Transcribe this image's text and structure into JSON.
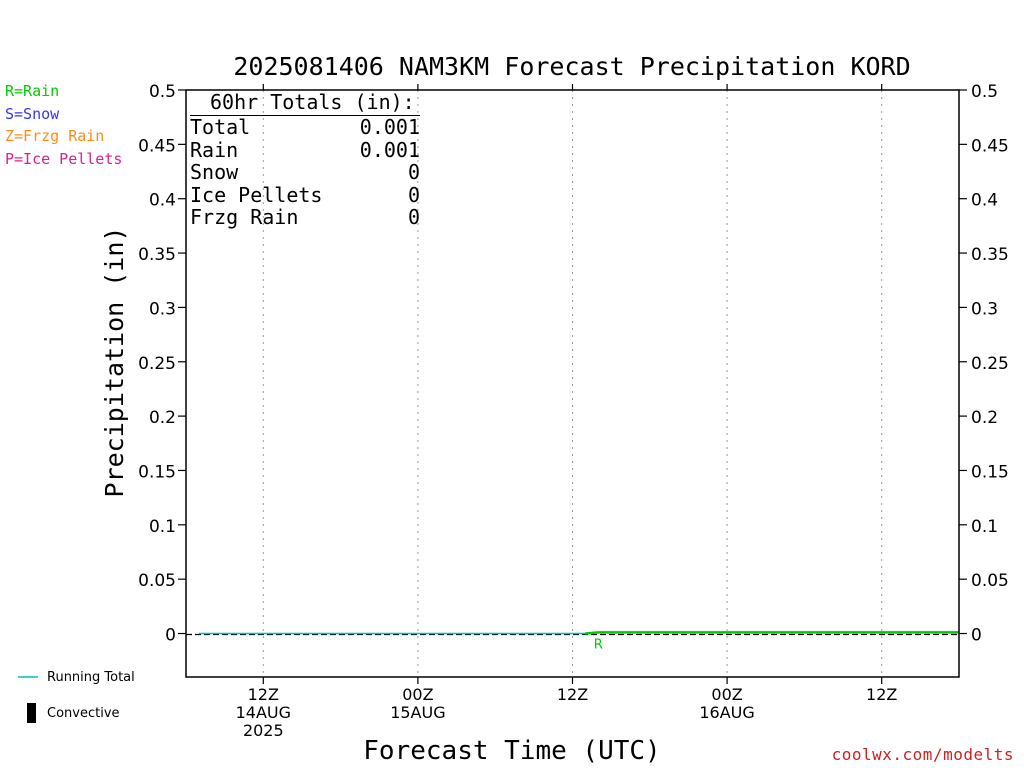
{
  "chart_data": {
    "type": "line",
    "title": "2025081406 NAM3KM Forecast Precipitation KORD",
    "xlabel": "Forecast Time (UTC)",
    "ylabel": "Precipitation (in)",
    "ylim": [
      -0.04,
      0.5
    ],
    "yticks": [
      "0",
      "0.05",
      "0.1",
      "0.15",
      "0.2",
      "0.25",
      "0.3",
      "0.35",
      "0.4",
      "0.45",
      "0.5"
    ],
    "xlim": [
      "2025-08-14 06Z",
      "2025-08-16 18Z"
    ],
    "xticks": [
      {
        "hour": "12Z",
        "date": "14AUG",
        "year": "2025",
        "time": "2025-08-14 12Z"
      },
      {
        "hour": "00Z",
        "date": "15AUG",
        "year": "",
        "time": "2025-08-15 00Z"
      },
      {
        "hour": "12Z",
        "date": "",
        "year": "",
        "time": "2025-08-15 12Z"
      },
      {
        "hour": "00Z",
        "date": "16AUG",
        "year": "",
        "time": "2025-08-16 00Z"
      },
      {
        "hour": "12Z",
        "date": "",
        "year": "",
        "time": "2025-08-16 12Z"
      }
    ],
    "grid": "vertical dotted at x ticks",
    "series": [
      {
        "name": "Running Total",
        "color": "#00bfbf",
        "points": [
          {
            "time": "2025-08-14 07Z",
            "value": 0
          },
          {
            "time": "2025-08-15 13Z",
            "value": 0
          },
          {
            "time": "2025-08-15 14Z",
            "value": 0.001
          },
          {
            "time": "2025-08-16 18Z",
            "value": 0.001
          }
        ]
      },
      {
        "name": "Rain",
        "color": "#00cc00",
        "points": [
          {
            "time": "2025-08-15 13Z",
            "value": 0
          },
          {
            "time": "2025-08-15 14Z",
            "value": 0.001
          },
          {
            "time": "2025-08-16 18Z",
            "value": 0.001
          }
        ]
      }
    ],
    "precip_markers": [
      {
        "time": "2025-08-15 14Z",
        "symbol": "R",
        "color": "#00cc00"
      }
    ]
  },
  "legend": {
    "types": [
      {
        "label": "R=Rain",
        "color": "#00cc00"
      },
      {
        "label": "S=Snow",
        "color": "#3333ff"
      },
      {
        "label": "Z=Frzg Rain",
        "color": "#ff8c1a"
      },
      {
        "label": "P=Ice Pellets",
        "color": "#e0208a"
      }
    ],
    "running_total": "Running Total",
    "convective": "Convective"
  },
  "totals": {
    "title": "60hr Totals (in):",
    "rows": [
      {
        "label": "Total",
        "value": "0.001"
      },
      {
        "label": "Rain",
        "value": "0.001"
      },
      {
        "label": "Snow",
        "value": "0"
      },
      {
        "label": "Ice Pellets",
        "value": "0"
      },
      {
        "label": "Frzg Rain",
        "value": "0"
      }
    ]
  },
  "credit": "coolwx.com/modelts"
}
